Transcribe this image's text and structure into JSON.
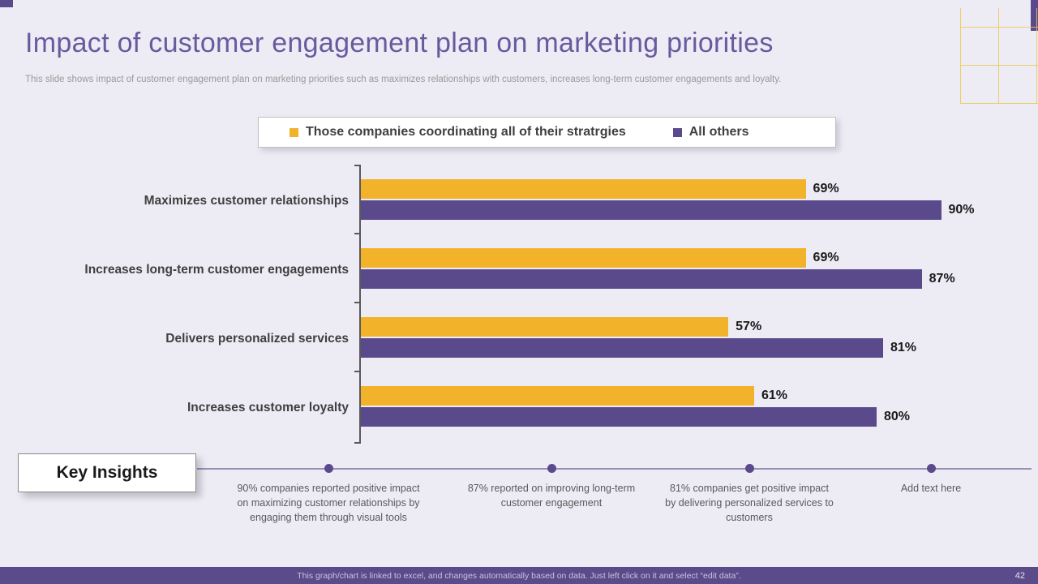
{
  "slide": {
    "title": "Impact of customer engagement plan on marketing priorities",
    "subtitle": "This slide shows impact of customer engagement plan on marketing priorities such as maximizes relationships with customers, increases long-term customer engagements and loyalty.",
    "footer_note": "This graph/chart is linked to excel, and changes automatically based on data. Just left click on it and select “edit data”.",
    "page_number": "42"
  },
  "chart_data": {
    "type": "bar",
    "orientation": "horizontal",
    "categories": [
      "Maximizes customer relationships",
      "Increases long-term customer engagements",
      "Delivers personalized services",
      "Increases customer loyalty"
    ],
    "series": [
      {
        "name": "Those companies coordinating all of their stratrgies",
        "color": "#F2B229",
        "values": [
          69,
          69,
          57,
          61
        ]
      },
      {
        "name": "All others",
        "color": "#5A4A8C",
        "values": [
          90,
          87,
          81,
          80
        ]
      }
    ],
    "value_labels": [
      [
        "69%",
        "69%",
        "57%",
        "61%"
      ],
      [
        "90%",
        "87%",
        "81%",
        "80%"
      ]
    ],
    "value_suffix": "%",
    "xlim": [
      0,
      100
    ],
    "grid": false,
    "legend_position": "top"
  },
  "insights": {
    "label": "Key Insights",
    "items": [
      "90% companies reported positive impact on maximizing customer relationships by engaging them through visual tools",
      "87% reported on improving long-term customer engagement",
      "81% companies get positive impact by delivering personalized services to customers",
      "Add text here"
    ]
  },
  "colors": {
    "background": "#EDECF5",
    "title": "#695A9E",
    "series1": "#F2B229",
    "series2": "#5A4A8C",
    "footer_bg": "#5B4B8B",
    "text_dark": "#3F3F3F",
    "text_gray": "#9A9A9A",
    "insight_text": "#595959",
    "axis": "#595959",
    "timeline": "#9A91B8",
    "grid_yellow": "#EEC84E"
  }
}
